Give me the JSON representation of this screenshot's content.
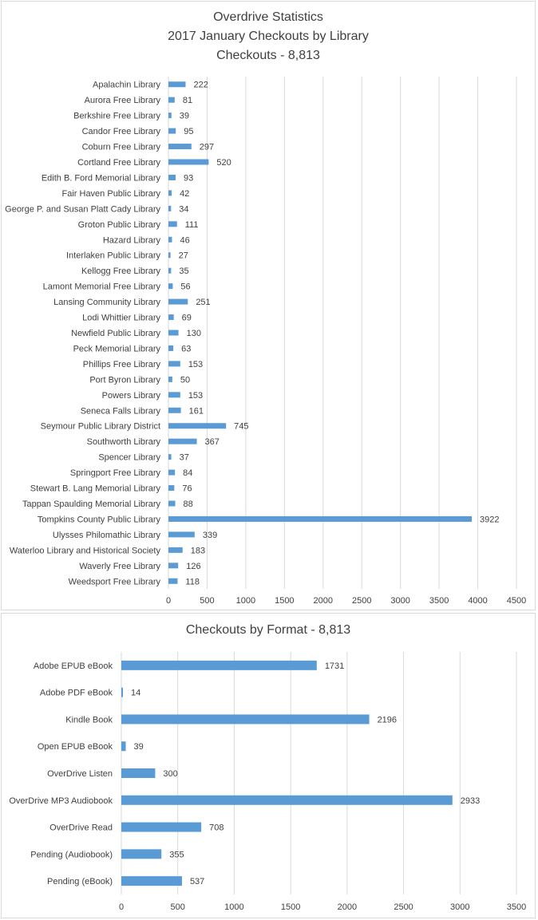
{
  "charts_meta": {
    "colors": {
      "bar": "#5b9bd5",
      "grid": "#d9d9d9",
      "text": "#404040"
    }
  },
  "chart_data": [
    {
      "type": "bar",
      "orientation": "horizontal",
      "title_lines": [
        "Overdrive Statistics",
        "2017 January Checkouts by Library",
        "Checkouts - 8,813"
      ],
      "categories": [
        "Apalachin Library",
        "Aurora Free Library",
        "Berkshire Free Library",
        "Candor Free Library",
        "Coburn Free Library",
        "Cortland Free Library",
        "Edith B. Ford Memorial Library",
        "Fair Haven Public Library",
        "George P. and Susan Platt Cady Library",
        "Groton Public Library",
        "Hazard Library",
        "Interlaken Public Library",
        "Kellogg Free Library",
        "Lamont Memorial Free Library",
        "Lansing Community Library",
        "Lodi Whittier Library",
        "Newfield Public Library",
        "Peck Memorial Library",
        "Phillips Free Library",
        "Port Byron Library",
        "Powers Library",
        "Seneca Falls Library",
        "Seymour Public Library District",
        "Southworth Library",
        "Spencer Library",
        "Springport Free Library",
        "Stewart B. Lang Memorial Library",
        "Tappan Spaulding Memorial Library",
        "Tompkins County Public Library",
        "Ulysses Philomathic Library",
        "Waterloo Library and Historical Society",
        "Waverly Free Library",
        "Weedsport Free Library"
      ],
      "values": [
        222,
        81,
        39,
        95,
        297,
        520,
        93,
        42,
        34,
        111,
        46,
        27,
        35,
        56,
        251,
        69,
        130,
        63,
        153,
        50,
        153,
        161,
        745,
        367,
        37,
        84,
        76,
        88,
        3922,
        339,
        183,
        126,
        118
      ],
      "xticks": [
        0,
        500,
        1000,
        1500,
        2000,
        2500,
        3000,
        3500,
        4000,
        4500
      ],
      "xlim": [
        0,
        4500
      ],
      "grid": true,
      "legend": "none",
      "data_labels": true
    },
    {
      "type": "bar",
      "orientation": "horizontal",
      "title_lines": [
        "Checkouts by Format - 8,813"
      ],
      "categories": [
        "Adobe EPUB eBook",
        "Adobe PDF eBook",
        "Kindle Book",
        "Open EPUB eBook",
        "OverDrive Listen",
        "OverDrive MP3 Audiobook",
        "OverDrive Read",
        "Pending (Audiobook)",
        "Pending (eBook)"
      ],
      "values": [
        1731,
        14,
        2196,
        39,
        300,
        2933,
        708,
        355,
        537
      ],
      "xticks": [
        0,
        500,
        1000,
        1500,
        2000,
        2500,
        3000,
        3500
      ],
      "xlim": [
        0,
        3500
      ],
      "grid": true,
      "legend": "none",
      "data_labels": true
    }
  ]
}
